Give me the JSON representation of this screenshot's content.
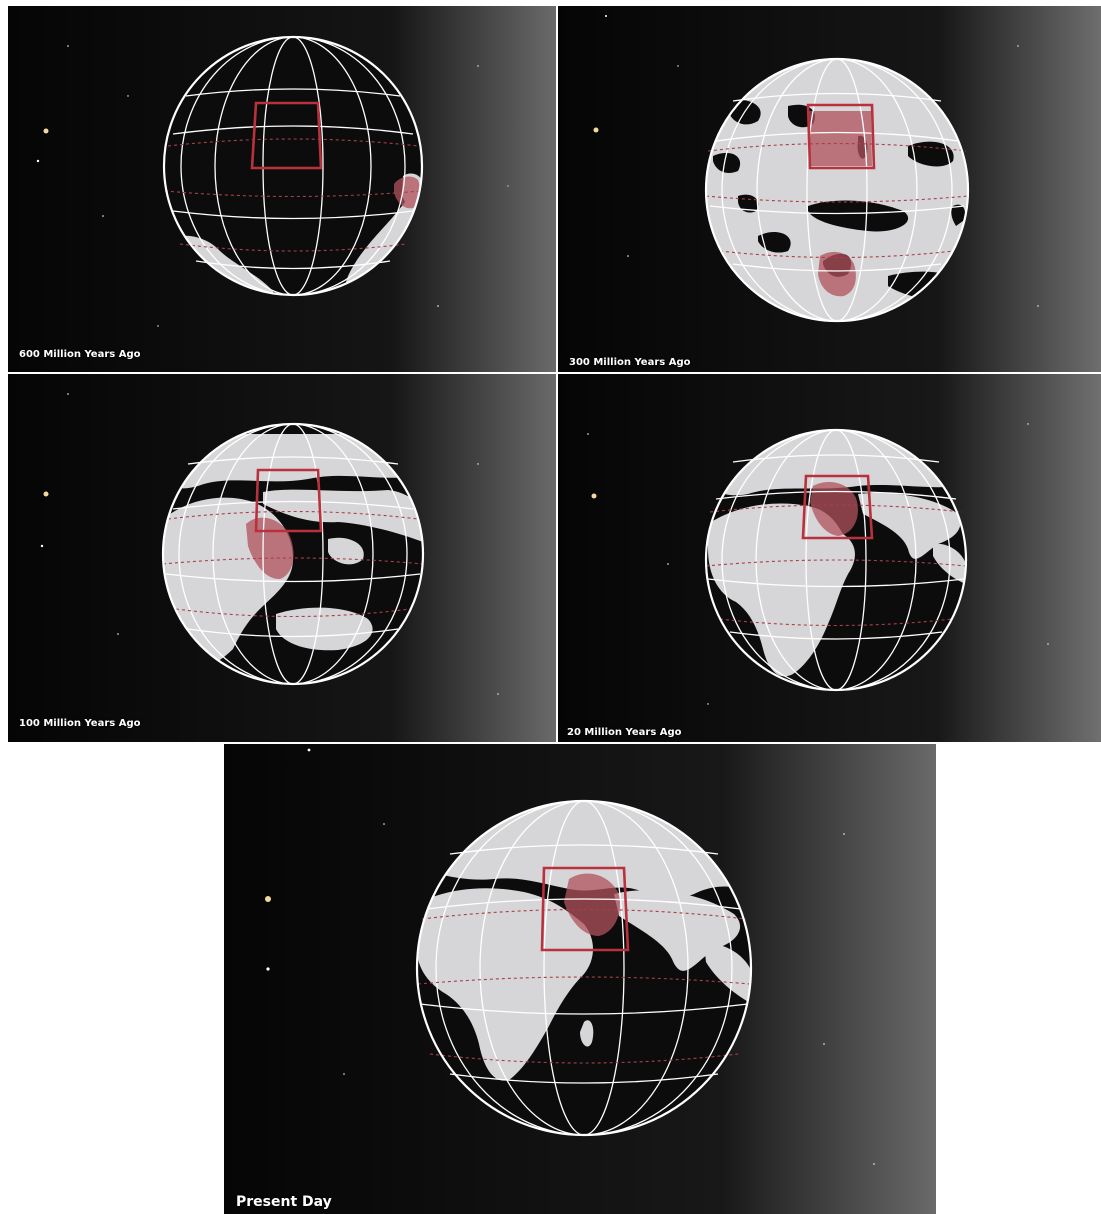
{
  "panels": [
    {
      "label": "600 Million Years Ago",
      "colors": {
        "land": "#d6d6d8",
        "highlight": "#b0505c",
        "box": "#b8313c"
      }
    },
    {
      "label": "300 Million Years Ago",
      "colors": {
        "land": "#d6d6d8",
        "highlight": "#b0505c",
        "box": "#b8313c"
      }
    },
    {
      "label": "100 Million Years Ago",
      "colors": {
        "land": "#d6d6d8",
        "highlight": "#b0505c",
        "box": "#b8313c"
      }
    },
    {
      "label": "20 Million Years Ago",
      "colors": {
        "land": "#d6d6d8",
        "highlight": "#b0505c",
        "box": "#b8313c"
      }
    },
    {
      "label": "Present Day",
      "colors": {
        "land": "#d6d6d8",
        "highlight": "#b0505c",
        "box": "#b8313c"
      }
    }
  ]
}
